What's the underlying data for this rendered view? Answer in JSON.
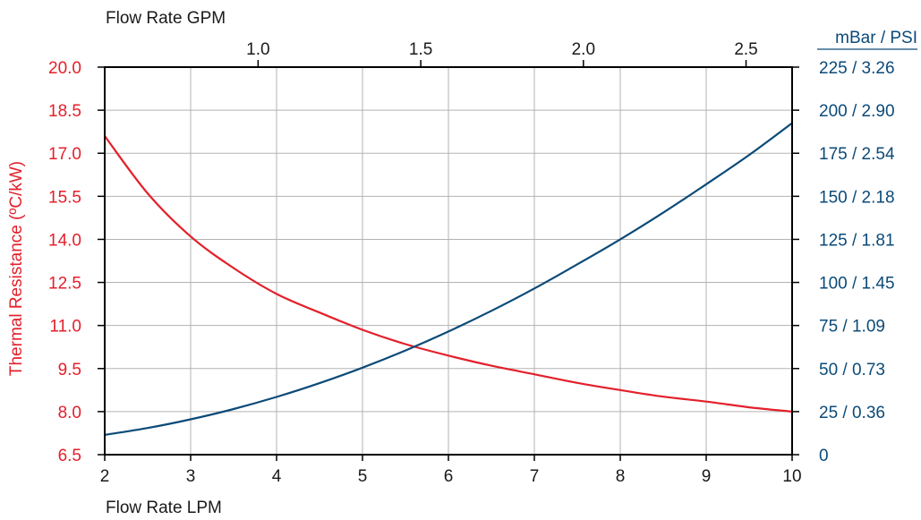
{
  "chart_data": {
    "type": "line",
    "top_axis_title": "Flow Rate GPM",
    "top_ticks": [
      "1.0",
      "1.5",
      "2.0",
      "2.5"
    ],
    "top_tick_values_lpm": [
      3.785,
      5.678,
      7.571,
      9.464
    ],
    "bottom_axis_title": "Flow Rate LPM",
    "bottom_ticks": [
      "2",
      "3",
      "4",
      "5",
      "6",
      "7",
      "8",
      "9",
      "10"
    ],
    "xlim": [
      2,
      10
    ],
    "left_axis_title": "Thermal Resistance (ºC/kW)",
    "left_ticks": [
      "20.0",
      "18.5",
      "17.0",
      "15.5",
      "14.0",
      "12.5",
      "11.0",
      "9.5",
      "8.0",
      "6.5"
    ],
    "left_ylim": [
      6.5,
      20.0
    ],
    "right_axis_title": "mBar / PSI",
    "right_ticks": [
      "225 / 3.26",
      "200 / 2.90",
      "175 / 2.54",
      "150 / 2.18",
      "125 / 1.81",
      "100 / 1.45",
      "75 / 1.09",
      "50 / 0.73",
      "25 / 0.36",
      "0"
    ],
    "right_ylim": [
      0,
      225
    ],
    "grid": true,
    "colors": {
      "thermal": "#e3202b",
      "pressure": "#0b4a78",
      "grid": "#b3b3b3",
      "axis": "#000000"
    },
    "series": [
      {
        "axis": "left",
        "color": "#e3202b",
        "x": [
          2.0,
          2.5,
          3.0,
          3.5,
          4.0,
          4.5,
          5.0,
          5.5,
          6.0,
          6.5,
          7.0,
          7.5,
          8.0,
          8.5,
          9.0,
          9.5,
          10.0
        ],
        "y": [
          17.6,
          15.6,
          14.1,
          13.0,
          12.1,
          11.45,
          10.85,
          10.35,
          9.95,
          9.6,
          9.3,
          9.0,
          8.75,
          8.52,
          8.35,
          8.15,
          8.0
        ]
      },
      {
        "axis": "right",
        "color": "#0b4a78",
        "x": [
          2.0,
          2.5,
          3.0,
          3.5,
          4.0,
          4.5,
          5.0,
          5.5,
          6.0,
          6.5,
          7.0,
          7.5,
          8.0,
          8.5,
          9.0,
          9.5,
          10.0
        ],
        "y": [
          11.5,
          15.5,
          20.5,
          26.5,
          33.5,
          41.5,
          50.5,
          60.5,
          71.5,
          83.5,
          96.5,
          110.5,
          125.0,
          140.5,
          157.0,
          174.0,
          192.5
        ]
      }
    ]
  }
}
